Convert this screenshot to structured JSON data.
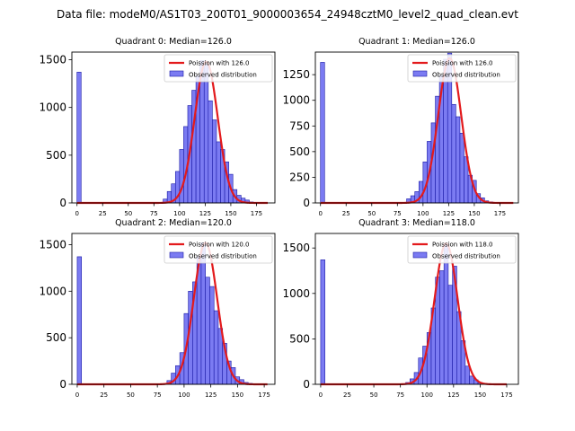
{
  "suptitle": "Data file: modeM0/AS1T03_200T01_9000003654_24948cztM0_level2_quad_clean.evt",
  "colors": {
    "hist_fill": "#7b7bf2",
    "hist_edge": "#1a1aa6",
    "poisson_line": "#e31a1c",
    "axes": "#000000"
  },
  "chart_data": [
    {
      "type": "bar",
      "title": "Quadrant 0: Median=126.0",
      "median": 126,
      "legend": [
        "Poission with 126.0",
        "Observed distribution"
      ],
      "legend_loc": "top-right",
      "xlim": [
        -5,
        193
      ],
      "ylim": [
        0,
        1580
      ],
      "xticks": [
        0,
        25,
        50,
        75,
        100,
        125,
        150,
        175
      ],
      "yticks": [
        0,
        500,
        1000,
        1500
      ],
      "bin_width": 4,
      "bins": [
        [
          0,
          1370
        ],
        [
          84,
          40
        ],
        [
          88,
          120
        ],
        [
          92,
          200
        ],
        [
          96,
          330
        ],
        [
          100,
          560
        ],
        [
          104,
          800
        ],
        [
          108,
          1020
        ],
        [
          112,
          1180
        ],
        [
          116,
          1330
        ],
        [
          120,
          1490
        ],
        [
          124,
          1450
        ],
        [
          128,
          1070
        ],
        [
          132,
          870
        ],
        [
          136,
          640
        ],
        [
          140,
          560
        ],
        [
          144,
          430
        ],
        [
          148,
          300
        ],
        [
          152,
          140
        ],
        [
          156,
          80
        ],
        [
          160,
          50
        ],
        [
          164,
          30
        ],
        [
          168,
          10
        ],
        [
          172,
          5
        ]
      ],
      "curve": {
        "mu": 126,
        "peak": 1480,
        "x_min": 0,
        "x_max": 186
      }
    },
    {
      "type": "bar",
      "title": "Quadrant 1: Median=126.0",
      "median": 126,
      "legend": [
        "Poission with 126.0",
        "Observed distribution"
      ],
      "legend_loc": "top-right",
      "xlim": [
        -5,
        193
      ],
      "ylim": [
        0,
        1470
      ],
      "xticks": [
        0,
        25,
        50,
        75,
        100,
        125,
        150,
        175
      ],
      "yticks": [
        0,
        250,
        500,
        750,
        1000,
        1250
      ],
      "bin_width": 4,
      "bins": [
        [
          0,
          1370
        ],
        [
          84,
          40
        ],
        [
          88,
          70
        ],
        [
          92,
          110
        ],
        [
          96,
          210
        ],
        [
          100,
          400
        ],
        [
          104,
          600
        ],
        [
          108,
          780
        ],
        [
          112,
          1040
        ],
        [
          116,
          1240
        ],
        [
          120,
          1400
        ],
        [
          124,
          1460
        ],
        [
          128,
          960
        ],
        [
          132,
          840
        ],
        [
          136,
          680
        ],
        [
          140,
          450
        ],
        [
          144,
          270
        ],
        [
          148,
          220
        ],
        [
          152,
          90
        ],
        [
          156,
          50
        ],
        [
          160,
          20
        ],
        [
          164,
          10
        ],
        [
          168,
          5
        ]
      ],
      "curve": {
        "mu": 126,
        "peak": 1410,
        "x_min": 0,
        "x_max": 188
      }
    },
    {
      "type": "bar",
      "title": "Quadrant 2: Median=120.0",
      "median": 120,
      "legend": [
        "Poission with 120.0",
        "Observed distribution"
      ],
      "legend_loc": "top-right",
      "xlim": [
        -5,
        185
      ],
      "ylim": [
        0,
        1620
      ],
      "xticks": [
        0,
        25,
        50,
        75,
        100,
        125,
        150,
        175
      ],
      "yticks": [
        0,
        500,
        1000,
        1500
      ],
      "bin_width": 4,
      "bins": [
        [
          0,
          1370
        ],
        [
          84,
          40
        ],
        [
          88,
          120
        ],
        [
          92,
          200
        ],
        [
          96,
          340
        ],
        [
          100,
          760
        ],
        [
          104,
          1000
        ],
        [
          108,
          1100
        ],
        [
          112,
          1370
        ],
        [
          116,
          1520
        ],
        [
          120,
          1150
        ],
        [
          124,
          1050
        ],
        [
          128,
          790
        ],
        [
          132,
          600
        ],
        [
          136,
          440
        ],
        [
          140,
          250
        ],
        [
          144,
          180
        ],
        [
          148,
          80
        ],
        [
          152,
          50
        ],
        [
          156,
          20
        ],
        [
          160,
          10
        ],
        [
          164,
          5
        ]
      ],
      "curve": {
        "mu": 120,
        "peak": 1520,
        "x_min": 0,
        "x_max": 178
      }
    },
    {
      "type": "bar",
      "title": "Quadrant 3: Median=118.0",
      "median": 118,
      "legend": [
        "Poission with 118.0",
        "Observed distribution"
      ],
      "legend_loc": "top-right",
      "xlim": [
        -5,
        186
      ],
      "ylim": [
        0,
        1660
      ],
      "xticks": [
        0,
        25,
        50,
        75,
        100,
        125,
        150,
        175
      ],
      "yticks": [
        0,
        500,
        1000,
        1500
      ],
      "bin_width": 4,
      "bins": [
        [
          0,
          1370
        ],
        [
          80,
          20
        ],
        [
          84,
          60
        ],
        [
          88,
          130
        ],
        [
          92,
          290
        ],
        [
          96,
          420
        ],
        [
          100,
          570
        ],
        [
          104,
          840
        ],
        [
          108,
          1180
        ],
        [
          112,
          1250
        ],
        [
          116,
          1540
        ],
        [
          120,
          1090
        ],
        [
          124,
          1300
        ],
        [
          128,
          800
        ],
        [
          132,
          480
        ],
        [
          136,
          200
        ],
        [
          140,
          90
        ],
        [
          144,
          50
        ],
        [
          148,
          20
        ],
        [
          152,
          5
        ]
      ],
      "curve": {
        "mu": 118,
        "peak": 1550,
        "x_min": 0,
        "x_max": 175
      }
    }
  ]
}
